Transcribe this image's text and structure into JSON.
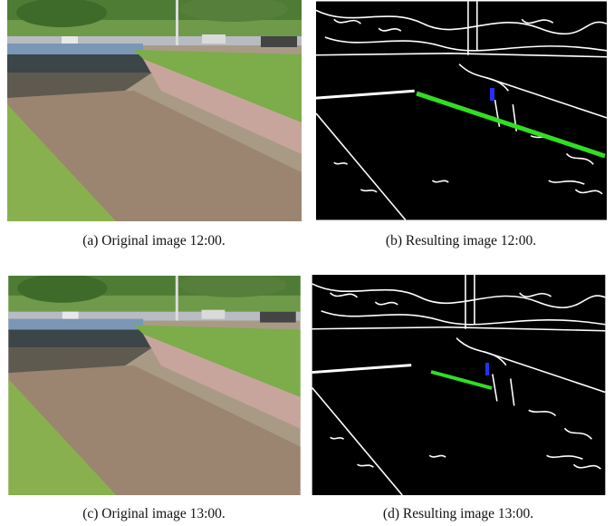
{
  "figure": {
    "subfigures": [
      {
        "caption": "(a) Original image 12:00."
      },
      {
        "caption": "(b) Resulting image 12:00."
      },
      {
        "caption": "(c) Original image 13:00."
      },
      {
        "caption": "(d) Resulting image 13:00."
      }
    ]
  }
}
